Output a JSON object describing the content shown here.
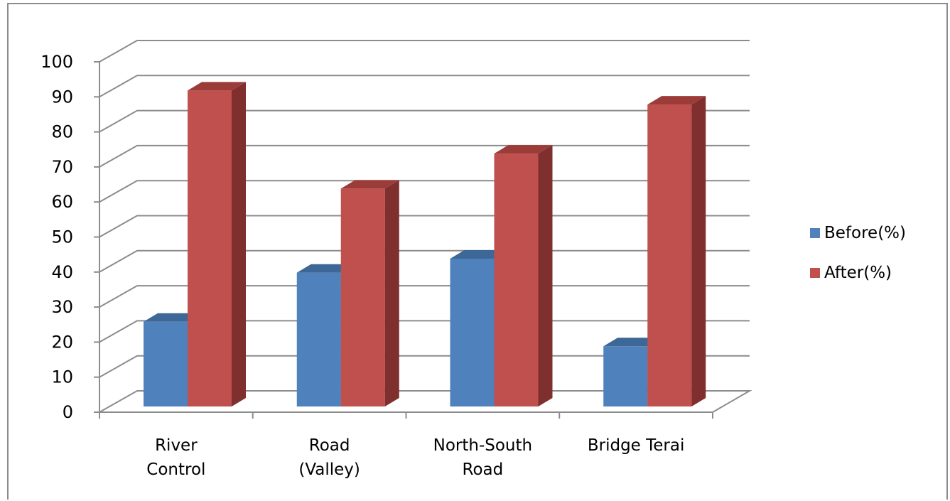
{
  "chart_data": {
    "type": "bar",
    "title": "",
    "xlabel": "",
    "ylabel": "",
    "ylim": [
      0,
      100
    ],
    "yticks": [
      "0",
      "10",
      "20",
      "30",
      "40",
      "50",
      "60",
      "70",
      "80",
      "90",
      "100"
    ],
    "categories": [
      [
        "River",
        "Control"
      ],
      [
        "Road",
        "(Valley)"
      ],
      [
        "North-South",
        "Road"
      ],
      [
        "Bridge Terai"
      ]
    ],
    "series": [
      {
        "name": "Before(%)",
        "values": [
          25,
          39,
          43,
          18
        ],
        "color": "#4f81bd",
        "side": "#385d8a",
        "top": "#3d6796"
      },
      {
        "name": "After(%)",
        "values": [
          91,
          63,
          73,
          87
        ],
        "color": "#c0504d",
        "side": "#7f2f2d",
        "top": "#9b3c39"
      }
    ],
    "grid": true,
    "legend": "right",
    "style": "3d-clustered-column"
  }
}
